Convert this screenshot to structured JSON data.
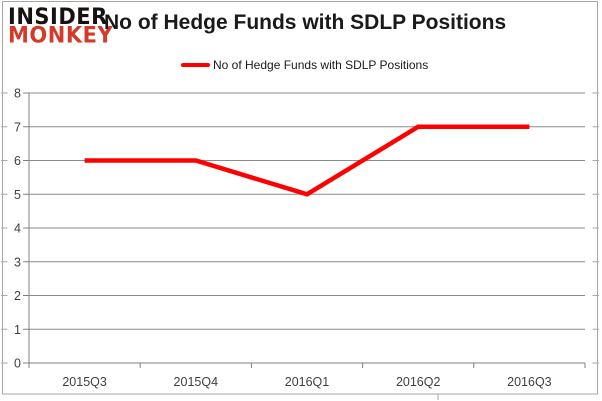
{
  "brand": {
    "line1": "INSIDER",
    "line2": "MONKEY"
  },
  "header": {
    "title": "No of Hedge Funds with SDLP Positions"
  },
  "legend": {
    "label": "No of Hedge Funds with SDLP Positions"
  },
  "chart_data": {
    "type": "line",
    "title": "No of Hedge Funds with SDLP Positions",
    "categories": [
      "2015Q3",
      "2015Q4",
      "2016Q1",
      "2016Q2",
      "2016Q3"
    ],
    "series": [
      {
        "name": "No of Hedge Funds with SDLP Positions",
        "values": [
          6,
          6,
          5,
          7,
          7
        ],
        "color": "#ff0000"
      }
    ],
    "xlabel": "",
    "ylabel": "",
    "ylim": [
      0,
      8
    ],
    "yticks": [
      0,
      1,
      2,
      3,
      4,
      5,
      6,
      7,
      8
    ],
    "grid": true,
    "legend_position": "top-center",
    "line_width": 4.5,
    "markers": false
  },
  "colors": {
    "line": "#ff0000",
    "grid": "#8a8a8a",
    "axis": "#808080",
    "chart_border": "#a6a6a6",
    "border_tick": "#a6a6a6",
    "label_text": "#3f3f3f",
    "title_text": "#1a1a1a",
    "brand_primary": "#16120f",
    "brand_accent": "#d23b27",
    "background": "#ffffff"
  }
}
